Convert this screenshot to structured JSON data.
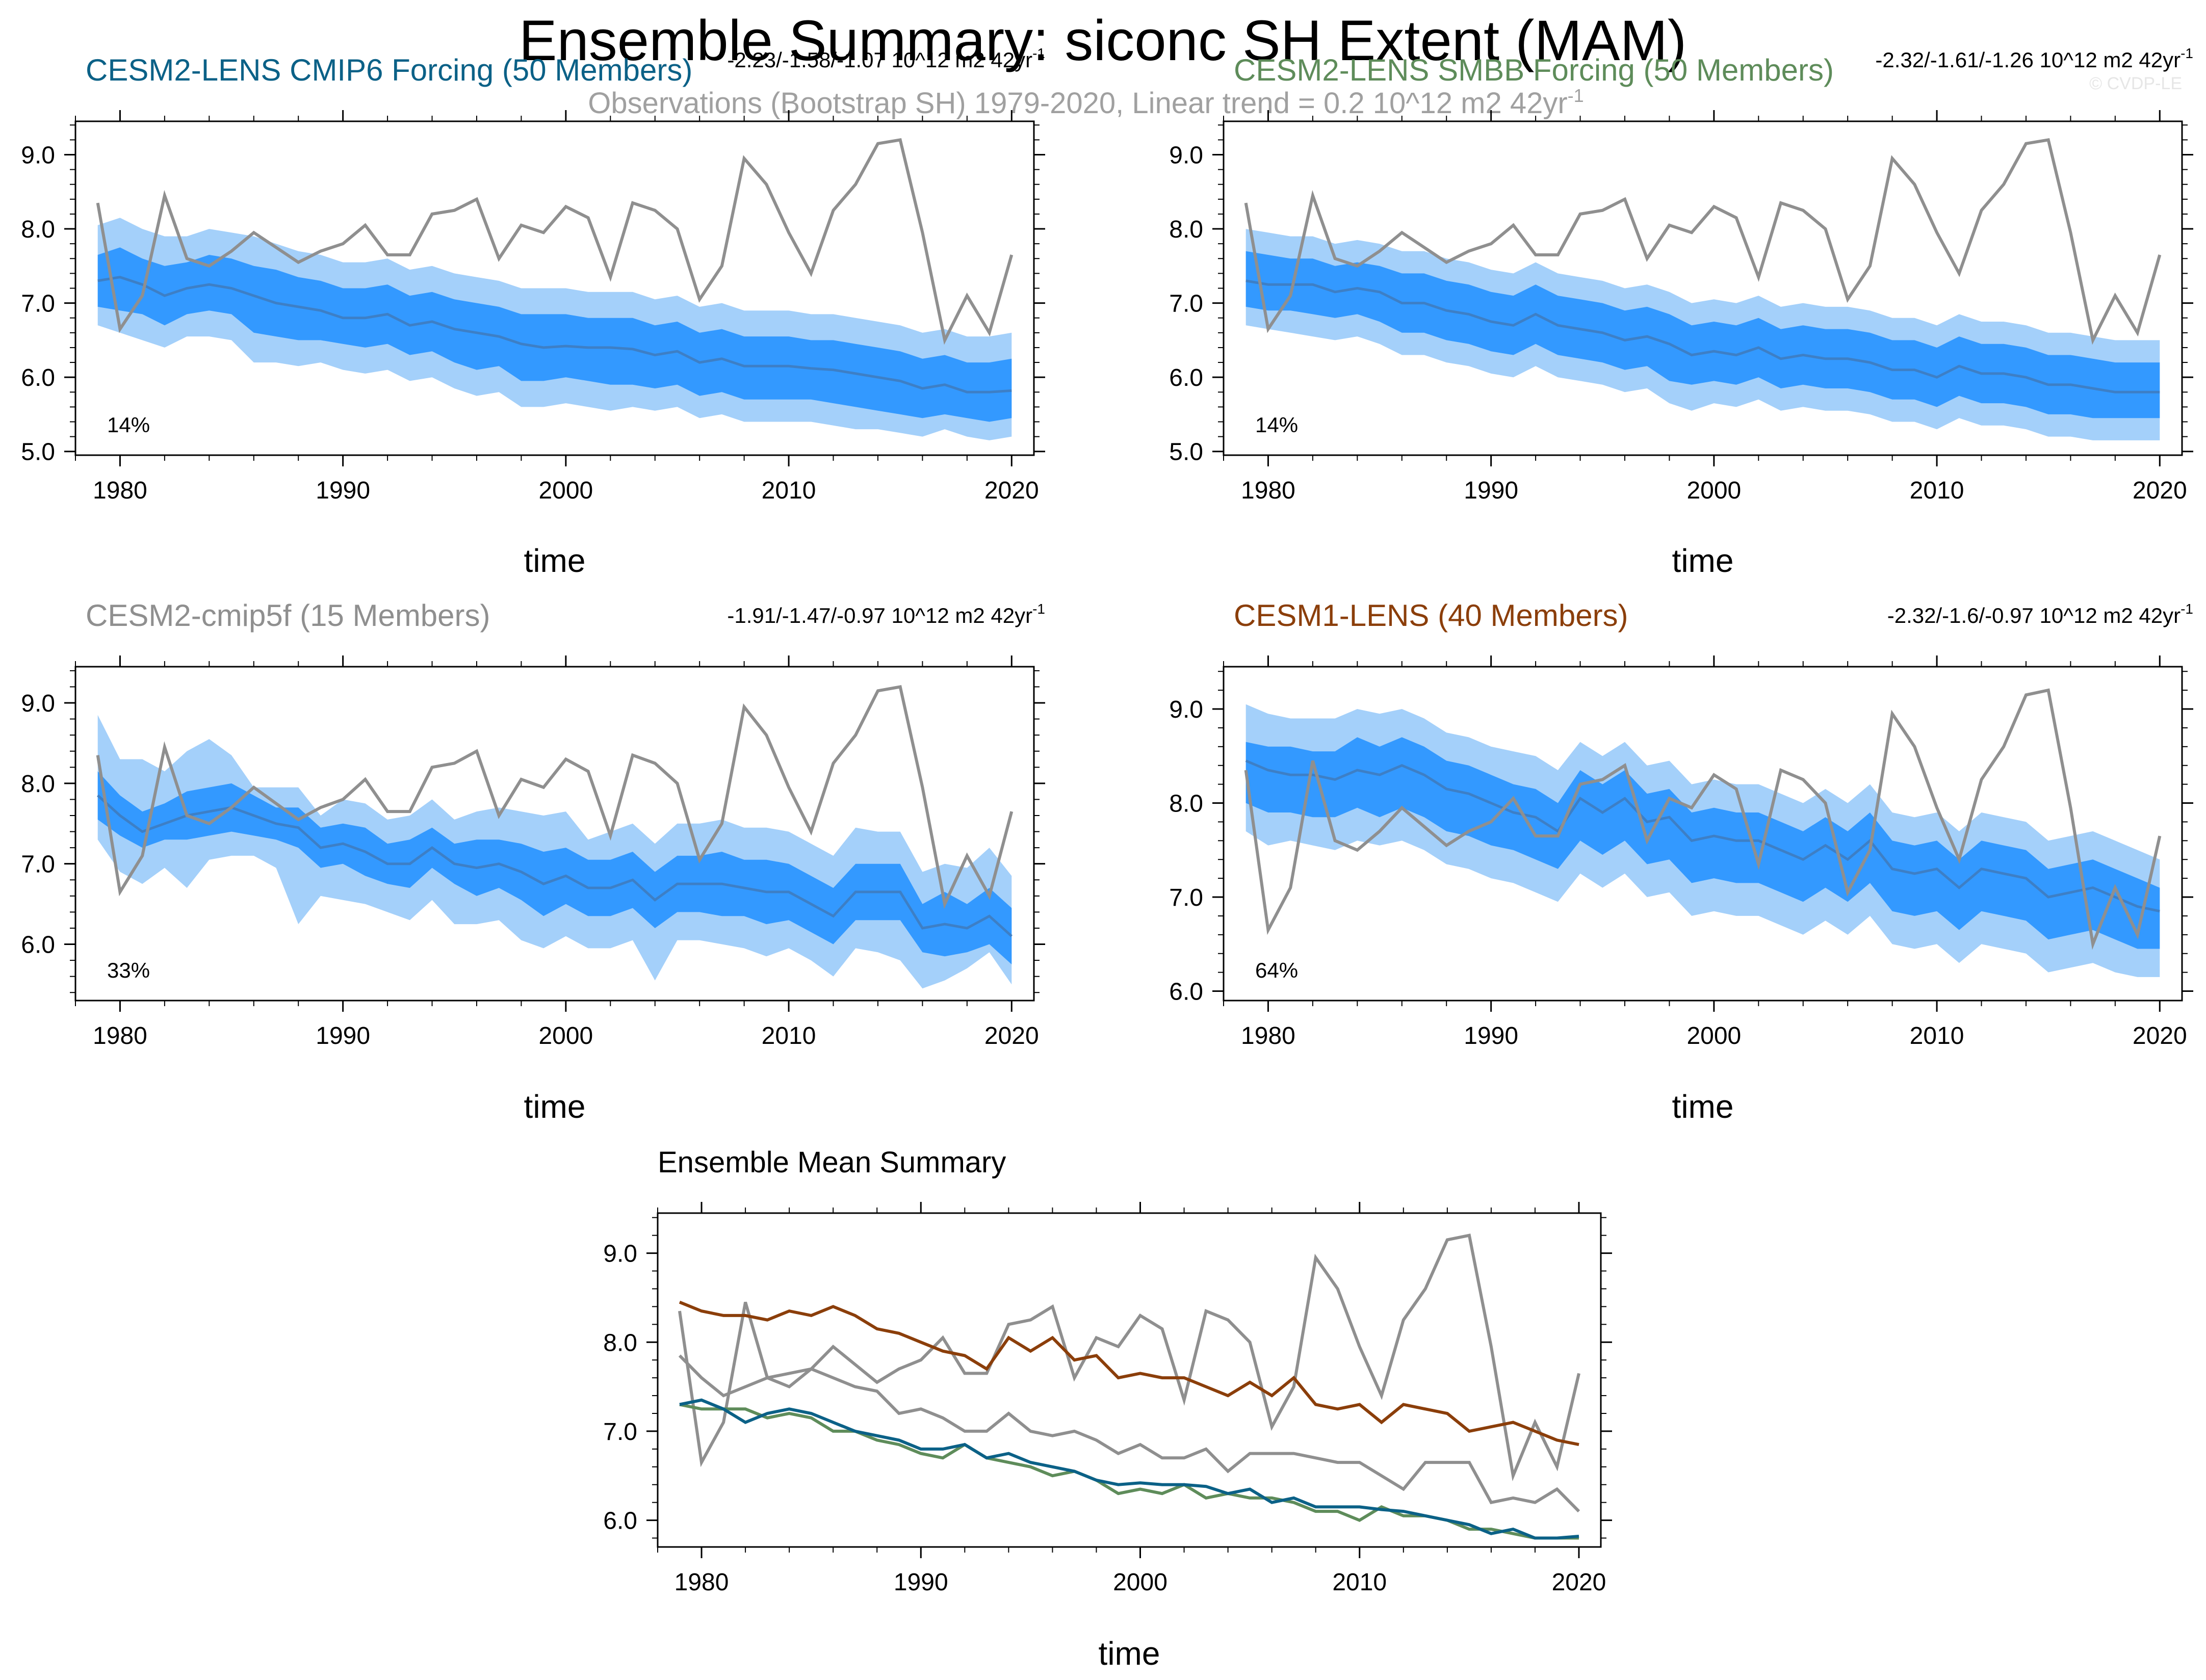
{
  "figure": {
    "title": "Ensemble Summary: siconc SH Extent (MAM)",
    "subtitle": "Observations (Bootstrap SH) 1979-2020, Linear trend = 0.2 10^12 m2 42yr",
    "subtitle_sup": "-1",
    "watermark": "© CVDP-LE",
    "bottom_title": "Ensemble Mean Summary"
  },
  "colors": {
    "band_outer": "#a4d0fa",
    "band_inner": "#3399ff",
    "mean_line": "#3d7fc6",
    "obs": "#8f8f8f",
    "cmip6": "#0b6187",
    "smbb": "#5e8c5a",
    "cmip5f": "#8f8f8f",
    "lens1": "#8b3e0a",
    "axis": "#000000"
  },
  "years": [
    1979,
    1980,
    1981,
    1982,
    1983,
    1984,
    1985,
    1986,
    1987,
    1988,
    1989,
    1990,
    1991,
    1992,
    1993,
    1994,
    1995,
    1996,
    1997,
    1998,
    1999,
    2000,
    2001,
    2002,
    2003,
    2004,
    2005,
    2006,
    2007,
    2008,
    2009,
    2010,
    2011,
    2012,
    2013,
    2014,
    2015,
    2016,
    2017,
    2018,
    2019,
    2020
  ],
  "observations": [
    8.35,
    6.65,
    7.1,
    8.45,
    7.6,
    7.5,
    7.7,
    7.95,
    7.75,
    7.55,
    7.7,
    7.8,
    8.05,
    7.65,
    7.65,
    8.2,
    8.25,
    8.4,
    7.6,
    8.05,
    7.95,
    8.3,
    8.15,
    7.35,
    8.35,
    8.25,
    8.0,
    7.05,
    7.5,
    8.95,
    8.6,
    7.95,
    7.4,
    8.25,
    8.6,
    9.15,
    9.2,
    7.95,
    6.5,
    7.1,
    6.6,
    7.65
  ],
  "chart_data": [
    {
      "type": "area",
      "name": "cesm2-lens-cmip6",
      "title": "CESM2-LENS CMIP6 Forcing (50 Members)",
      "trend_text": "-2.23/-1.58/-1.07 10^12 m2 42yr",
      "trend_sup": "-1",
      "percent_label": "14%",
      "xlabel": "time",
      "ylabel": "",
      "xlim": [
        1978,
        2021
      ],
      "ylim": [
        4.95,
        9.45
      ],
      "yticks": [
        5.0,
        6.0,
        7.0,
        8.0,
        9.0
      ],
      "ytick_labels": [
        "5.0",
        "6.0",
        "7.0",
        "8.0",
        "9.0"
      ],
      "xticks": [
        1980,
        1990,
        2000,
        2010,
        2020
      ],
      "xtick_labels": [
        "1980",
        "1990",
        "2000",
        "2010",
        "2020"
      ],
      "mean": [
        7.3,
        7.35,
        7.25,
        7.1,
        7.2,
        7.25,
        7.2,
        7.1,
        7.0,
        6.95,
        6.9,
        6.8,
        6.8,
        6.85,
        6.7,
        6.75,
        6.65,
        6.6,
        6.55,
        6.45,
        6.4,
        6.42,
        6.4,
        6.4,
        6.38,
        6.3,
        6.35,
        6.2,
        6.25,
        6.15,
        6.15,
        6.15,
        6.12,
        6.1,
        6.05,
        6.0,
        5.95,
        5.85,
        5.9,
        5.8,
        5.8,
        5.82
      ],
      "p10": [
        6.95,
        6.9,
        6.85,
        6.7,
        6.85,
        6.9,
        6.85,
        6.6,
        6.55,
        6.5,
        6.5,
        6.45,
        6.4,
        6.45,
        6.3,
        6.35,
        6.2,
        6.1,
        6.15,
        5.95,
        5.95,
        6.0,
        5.95,
        5.9,
        5.9,
        5.85,
        5.9,
        5.75,
        5.8,
        5.7,
        5.7,
        5.7,
        5.7,
        5.65,
        5.6,
        5.55,
        5.5,
        5.45,
        5.5,
        5.45,
        5.4,
        5.45
      ],
      "p90": [
        7.65,
        7.75,
        7.6,
        7.5,
        7.55,
        7.65,
        7.6,
        7.5,
        7.45,
        7.35,
        7.3,
        7.2,
        7.2,
        7.25,
        7.1,
        7.15,
        7.05,
        7.0,
        6.95,
        6.85,
        6.85,
        6.85,
        6.8,
        6.8,
        6.8,
        6.7,
        6.75,
        6.6,
        6.65,
        6.55,
        6.55,
        6.55,
        6.5,
        6.5,
        6.45,
        6.4,
        6.35,
        6.25,
        6.3,
        6.2,
        6.2,
        6.25
      ],
      "min": [
        6.7,
        6.6,
        6.5,
        6.4,
        6.55,
        6.55,
        6.5,
        6.2,
        6.2,
        6.15,
        6.2,
        6.1,
        6.05,
        6.1,
        5.95,
        6.0,
        5.85,
        5.75,
        5.8,
        5.6,
        5.6,
        5.65,
        5.6,
        5.55,
        5.6,
        5.55,
        5.6,
        5.45,
        5.5,
        5.4,
        5.4,
        5.4,
        5.4,
        5.35,
        5.3,
        5.3,
        5.25,
        5.2,
        5.3,
        5.2,
        5.15,
        5.2
      ],
      "max": [
        8.05,
        8.15,
        8.0,
        7.9,
        7.9,
        8.0,
        7.95,
        7.9,
        7.8,
        7.7,
        7.65,
        7.55,
        7.55,
        7.6,
        7.45,
        7.5,
        7.4,
        7.35,
        7.3,
        7.2,
        7.2,
        7.2,
        7.15,
        7.15,
        7.15,
        7.05,
        7.1,
        6.95,
        7.0,
        6.9,
        6.9,
        6.9,
        6.85,
        6.85,
        6.8,
        6.75,
        6.7,
        6.6,
        6.65,
        6.55,
        6.55,
        6.6
      ]
    },
    {
      "type": "area",
      "name": "cesm2-lens-smbb",
      "title": "CESM2-LENS SMBB Forcing (50 Members)",
      "trend_text": "-2.32/-1.61/-1.26 10^12 m2 42yr",
      "trend_sup": "-1",
      "percent_label": "14%",
      "xlabel": "time",
      "ylabel": "",
      "xlim": [
        1978,
        2021
      ],
      "ylim": [
        4.95,
        9.45
      ],
      "yticks": [
        5.0,
        6.0,
        7.0,
        8.0,
        9.0
      ],
      "ytick_labels": [
        "5.0",
        "6.0",
        "7.0",
        "8.0",
        "9.0"
      ],
      "xticks": [
        1980,
        1990,
        2000,
        2010,
        2020
      ],
      "xtick_labels": [
        "1980",
        "1990",
        "2000",
        "2010",
        "2020"
      ],
      "mean": [
        7.3,
        7.25,
        7.25,
        7.25,
        7.15,
        7.2,
        7.15,
        7.0,
        7.0,
        6.9,
        6.85,
        6.75,
        6.7,
        6.85,
        6.7,
        6.65,
        6.6,
        6.5,
        6.55,
        6.45,
        6.3,
        6.35,
        6.3,
        6.4,
        6.25,
        6.3,
        6.25,
        6.25,
        6.2,
        6.1,
        6.1,
        6.0,
        6.15,
        6.05,
        6.05,
        6.0,
        5.9,
        5.9,
        5.85,
        5.8,
        5.8,
        5.8
      ],
      "p10": [
        6.95,
        6.9,
        6.9,
        6.85,
        6.8,
        6.85,
        6.75,
        6.6,
        6.6,
        6.5,
        6.45,
        6.35,
        6.3,
        6.45,
        6.3,
        6.25,
        6.2,
        6.1,
        6.15,
        5.95,
        5.9,
        5.95,
        5.9,
        6.0,
        5.85,
        5.9,
        5.85,
        5.85,
        5.8,
        5.7,
        5.7,
        5.6,
        5.75,
        5.65,
        5.65,
        5.6,
        5.5,
        5.5,
        5.45,
        5.45,
        5.45,
        5.45
      ],
      "p90": [
        7.7,
        7.65,
        7.6,
        7.6,
        7.5,
        7.55,
        7.5,
        7.4,
        7.4,
        7.3,
        7.25,
        7.15,
        7.1,
        7.25,
        7.1,
        7.05,
        7.0,
        6.9,
        6.95,
        6.85,
        6.7,
        6.75,
        6.7,
        6.8,
        6.65,
        6.7,
        6.65,
        6.65,
        6.6,
        6.5,
        6.5,
        6.4,
        6.55,
        6.45,
        6.45,
        6.4,
        6.3,
        6.3,
        6.25,
        6.2,
        6.2,
        6.2
      ],
      "min": [
        6.7,
        6.65,
        6.6,
        6.55,
        6.5,
        6.55,
        6.45,
        6.3,
        6.3,
        6.2,
        6.15,
        6.05,
        6.0,
        6.15,
        6.0,
        5.95,
        5.9,
        5.8,
        5.85,
        5.65,
        5.55,
        5.65,
        5.6,
        5.7,
        5.55,
        5.6,
        5.55,
        5.55,
        5.5,
        5.4,
        5.4,
        5.3,
        5.45,
        5.35,
        5.35,
        5.3,
        5.2,
        5.2,
        5.15,
        5.15,
        5.15,
        5.15
      ],
      "max": [
        8.0,
        7.95,
        7.9,
        7.9,
        7.8,
        7.85,
        7.8,
        7.7,
        7.7,
        7.6,
        7.55,
        7.45,
        7.4,
        7.55,
        7.4,
        7.35,
        7.3,
        7.2,
        7.25,
        7.15,
        7.0,
        7.05,
        7.0,
        7.1,
        6.95,
        7.0,
        6.95,
        6.95,
        6.9,
        6.8,
        6.8,
        6.7,
        6.85,
        6.75,
        6.75,
        6.7,
        6.6,
        6.6,
        6.55,
        6.5,
        6.5,
        6.5
      ]
    },
    {
      "type": "area",
      "name": "cesm2-cmip5f",
      "title": "CESM2-cmip5f (15 Members)",
      "trend_text": "-1.91/-1.47/-0.97 10^12 m2 42yr",
      "trend_sup": "-1",
      "percent_label": "33%",
      "xlabel": "time",
      "ylabel": "",
      "xlim": [
        1978,
        2021
      ],
      "ylim": [
        5.3,
        9.45
      ],
      "yticks": [
        6.0,
        7.0,
        8.0,
        9.0
      ],
      "ytick_labels": [
        "6.0",
        "7.0",
        "8.0",
        "9.0"
      ],
      "xticks": [
        1980,
        1990,
        2000,
        2010,
        2020
      ],
      "xtick_labels": [
        "1980",
        "1990",
        "2000",
        "2010",
        "2020"
      ],
      "mean": [
        7.85,
        7.6,
        7.4,
        7.5,
        7.6,
        7.65,
        7.7,
        7.6,
        7.5,
        7.45,
        7.2,
        7.25,
        7.15,
        7.0,
        7.0,
        7.2,
        7.0,
        6.95,
        7.0,
        6.9,
        6.75,
        6.85,
        6.7,
        6.7,
        6.8,
        6.55,
        6.75,
        6.75,
        6.75,
        6.7,
        6.65,
        6.65,
        6.5,
        6.35,
        6.65,
        6.65,
        6.65,
        6.2,
        6.25,
        6.2,
        6.35,
        6.1
      ],
      "p10": [
        7.55,
        7.35,
        7.2,
        7.3,
        7.3,
        7.35,
        7.4,
        7.35,
        7.3,
        7.2,
        6.95,
        7.0,
        6.85,
        6.75,
        6.7,
        6.95,
        6.75,
        6.6,
        6.7,
        6.55,
        6.35,
        6.5,
        6.35,
        6.35,
        6.45,
        6.2,
        6.4,
        6.4,
        6.35,
        6.35,
        6.25,
        6.3,
        6.15,
        6.0,
        6.3,
        6.3,
        6.3,
        5.9,
        5.85,
        5.9,
        6.0,
        5.75
      ],
      "p90": [
        8.15,
        7.85,
        7.65,
        7.75,
        7.9,
        7.95,
        8.0,
        7.85,
        7.7,
        7.7,
        7.45,
        7.5,
        7.45,
        7.25,
        7.3,
        7.45,
        7.25,
        7.3,
        7.3,
        7.25,
        7.15,
        7.2,
        7.05,
        7.05,
        7.15,
        6.9,
        7.1,
        7.1,
        7.15,
        7.05,
        7.05,
        7.0,
        6.85,
        6.7,
        7.0,
        7.0,
        7.0,
        6.5,
        6.65,
        6.5,
        6.7,
        6.45
      ],
      "min": [
        7.3,
        6.9,
        6.75,
        6.95,
        6.7,
        7.05,
        7.1,
        7.1,
        6.95,
        6.25,
        6.6,
        6.55,
        6.5,
        6.4,
        6.3,
        6.55,
        6.25,
        6.25,
        6.3,
        6.05,
        5.95,
        6.1,
        5.95,
        5.95,
        6.05,
        5.55,
        6.05,
        6.05,
        6.0,
        5.95,
        5.85,
        5.95,
        5.8,
        5.6,
        5.95,
        5.9,
        5.8,
        5.45,
        5.55,
        5.7,
        5.9,
        5.5
      ],
      "max": [
        8.85,
        8.3,
        8.3,
        8.15,
        8.4,
        8.55,
        8.35,
        7.95,
        7.95,
        7.95,
        7.6,
        7.8,
        7.75,
        7.55,
        7.6,
        7.8,
        7.55,
        7.65,
        7.7,
        7.65,
        7.6,
        7.65,
        7.3,
        7.4,
        7.5,
        7.25,
        7.5,
        7.5,
        7.55,
        7.45,
        7.45,
        7.4,
        7.25,
        7.1,
        7.45,
        7.4,
        7.4,
        6.9,
        7.0,
        6.95,
        7.2,
        6.85
      ]
    },
    {
      "type": "area",
      "name": "cesm1-lens",
      "title": "CESM1-LENS (40 Members)",
      "trend_text": "-2.32/-1.6/-0.97 10^12 m2 42yr",
      "trend_sup": "-1",
      "percent_label": "64%",
      "xlabel": "time",
      "ylabel": "",
      "xlim": [
        1978,
        2021
      ],
      "ylim": [
        5.9,
        9.45
      ],
      "yticks": [
        6.0,
        7.0,
        8.0,
        9.0
      ],
      "ytick_labels": [
        "6.0",
        "7.0",
        "8.0",
        "9.0"
      ],
      "xticks": [
        1980,
        1990,
        2000,
        2010,
        2020
      ],
      "xtick_labels": [
        "1980",
        "1990",
        "2000",
        "2010",
        "2020"
      ],
      "mean": [
        8.45,
        8.35,
        8.3,
        8.3,
        8.25,
        8.35,
        8.3,
        8.4,
        8.3,
        8.15,
        8.1,
        8.0,
        7.9,
        7.85,
        7.7,
        8.05,
        7.9,
        8.05,
        7.8,
        7.85,
        7.6,
        7.65,
        7.6,
        7.6,
        7.5,
        7.4,
        7.55,
        7.4,
        7.6,
        7.3,
        7.25,
        7.3,
        7.1,
        7.3,
        7.25,
        7.2,
        7.0,
        7.05,
        7.1,
        7.0,
        6.9,
        6.85
      ],
      "p10": [
        8.0,
        7.9,
        7.9,
        7.85,
        7.85,
        7.95,
        7.85,
        7.95,
        7.85,
        7.7,
        7.65,
        7.55,
        7.5,
        7.4,
        7.3,
        7.6,
        7.45,
        7.6,
        7.35,
        7.4,
        7.15,
        7.2,
        7.15,
        7.15,
        7.05,
        6.95,
        7.1,
        6.95,
        7.15,
        6.85,
        6.8,
        6.85,
        6.65,
        6.85,
        6.8,
        6.75,
        6.55,
        6.6,
        6.65,
        6.55,
        6.45,
        6.45
      ],
      "p90": [
        8.65,
        8.6,
        8.6,
        8.55,
        8.55,
        8.7,
        8.6,
        8.7,
        8.6,
        8.45,
        8.4,
        8.3,
        8.2,
        8.15,
        8.0,
        8.35,
        8.2,
        8.35,
        8.1,
        8.15,
        7.9,
        7.95,
        7.9,
        7.9,
        7.8,
        7.7,
        7.85,
        7.7,
        7.9,
        7.6,
        7.55,
        7.6,
        7.4,
        7.6,
        7.55,
        7.5,
        7.3,
        7.35,
        7.4,
        7.3,
        7.2,
        7.1
      ],
      "min": [
        7.7,
        7.55,
        7.6,
        7.55,
        7.5,
        7.6,
        7.55,
        7.6,
        7.5,
        7.35,
        7.3,
        7.2,
        7.15,
        7.05,
        6.95,
        7.25,
        7.1,
        7.25,
        7.0,
        7.05,
        6.8,
        6.85,
        6.8,
        6.8,
        6.7,
        6.6,
        6.75,
        6.6,
        6.8,
        6.5,
        6.45,
        6.5,
        6.3,
        6.5,
        6.45,
        6.4,
        6.2,
        6.25,
        6.3,
        6.2,
        6.15,
        6.15
      ],
      "max": [
        9.05,
        8.95,
        8.9,
        8.9,
        8.9,
        9.0,
        8.95,
        9.0,
        8.9,
        8.75,
        8.7,
        8.6,
        8.55,
        8.5,
        8.35,
        8.65,
        8.5,
        8.65,
        8.4,
        8.45,
        8.2,
        8.25,
        8.2,
        8.2,
        8.1,
        8.0,
        8.15,
        8.0,
        8.2,
        7.9,
        7.85,
        7.9,
        7.7,
        7.9,
        7.85,
        7.8,
        7.6,
        7.65,
        7.7,
        7.6,
        7.5,
        7.4
      ]
    },
    {
      "type": "line",
      "name": "ensemble-mean-summary",
      "title": "Ensemble Mean Summary",
      "xlabel": "time",
      "ylabel": "",
      "xlim": [
        1978,
        2021
      ],
      "ylim": [
        5.7,
        9.45
      ],
      "yticks": [
        6.0,
        7.0,
        8.0,
        9.0
      ],
      "ytick_labels": [
        "6.0",
        "7.0",
        "8.0",
        "9.0"
      ],
      "xticks": [
        1980,
        1990,
        2000,
        2010,
        2020
      ],
      "xtick_labels": [
        "1980",
        "1990",
        "2000",
        "2010",
        "2020"
      ],
      "series_refs": [
        "observations",
        "cesm2-cmip5f",
        "cesm1-lens",
        "cesm2-lens-smbb",
        "cesm2-lens-cmip6"
      ]
    }
  ]
}
